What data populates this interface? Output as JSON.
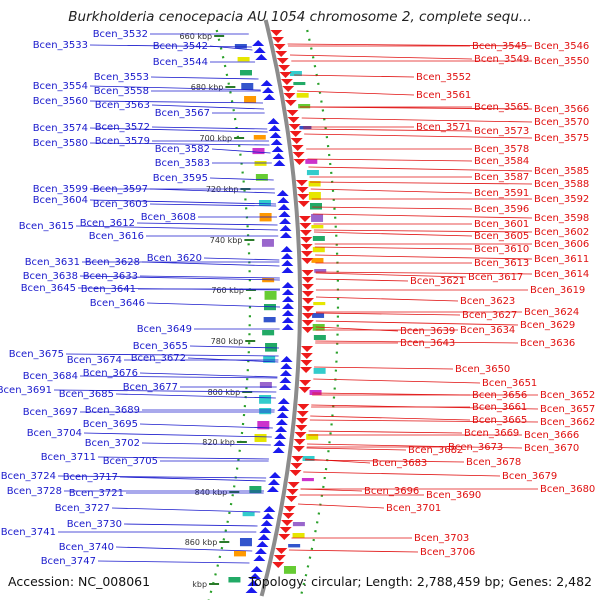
{
  "title": "Burkholderia cenocepacia AU 1054 chromosome 2, complete sequ...",
  "footer": {
    "accession": "Accession: NC_008061",
    "summary": "Topology: circular; Length: 2,788,459 bp; Genes: 2,482"
  },
  "colors": {
    "left_labels": "#1a1acc",
    "right_labels": "#e01010",
    "backbone": "#8c8c8c",
    "dots": "#2aa02a"
  },
  "scale_ticks": [
    "660 kbp",
    "680 kbp",
    "700 kbp",
    "720 kbp",
    "740 kbp",
    "760 kbp",
    "780 kbp",
    "800 kbp",
    "820 kbp",
    "840 kbp",
    "860 kbp",
    "kbp"
  ],
  "left_genes": [
    {
      "label": "Bcen_3532"
    },
    {
      "label": "Bcen_3533"
    },
    {
      "label": "Bcen_3542"
    },
    {
      "label": "Bcen_3544"
    },
    {
      "label": "Bcen_3553"
    },
    {
      "label": "Bcen_3554"
    },
    {
      "label": "Bcen_3558"
    },
    {
      "label": "Bcen_3560"
    },
    {
      "label": "Bcen_3563"
    },
    {
      "label": "Bcen_3567"
    },
    {
      "label": "Bcen_3572"
    },
    {
      "label": "Bcen_3574"
    },
    {
      "label": "Bcen_3579"
    },
    {
      "label": "Bcen_3580"
    },
    {
      "label": "Bcen_3582"
    },
    {
      "label": "Bcen_3583"
    },
    {
      "label": "Bcen_3595"
    },
    {
      "label": "Bcen_3597"
    },
    {
      "label": "Bcen_3599"
    },
    {
      "label": "Bcen_3603"
    },
    {
      "label": "Bcen_3604"
    },
    {
      "label": "Bcen_3608"
    },
    {
      "label": "Bcen_3612"
    },
    {
      "label": "Bcen_3615"
    },
    {
      "label": "Bcen_3616"
    },
    {
      "label": "Bcen_3620"
    },
    {
      "label": "Bcen_3628"
    },
    {
      "label": "Bcen_3631"
    },
    {
      "label": "Bcen_3633"
    },
    {
      "label": "Bcen_3638"
    },
    {
      "label": "Bcen_3641"
    },
    {
      "label": "Bcen_3645"
    },
    {
      "label": "Bcen_3646"
    },
    {
      "label": "Bcen_3649"
    },
    {
      "label": "Bcen_3655"
    },
    {
      "label": "Bcen_3672"
    },
    {
      "label": "Bcen_3674"
    },
    {
      "label": "Bcen_3675"
    },
    {
      "label": "Bcen_3676"
    },
    {
      "label": "Bcen_3677"
    },
    {
      "label": "Bcen_3684"
    },
    {
      "label": "Bcen_3685"
    },
    {
      "label": "Bcen_3689"
    },
    {
      "label": "Bcen_3691"
    },
    {
      "label": "Bcen_3695"
    },
    {
      "label": "Bcen_3697"
    },
    {
      "label": "Bcen_3702"
    },
    {
      "label": "Bcen_3704"
    },
    {
      "label": "Bcen_3705"
    },
    {
      "label": "Bcen_3711"
    },
    {
      "label": "Bcen_3717"
    },
    {
      "label": "Bcen_3721"
    },
    {
      "label": "Bcen_3724"
    },
    {
      "label": "Bcen_3727"
    },
    {
      "label": "Bcen_3728"
    },
    {
      "label": "Bcen_3730"
    },
    {
      "label": "Bcen_3740"
    },
    {
      "label": "Bcen_3741"
    },
    {
      "label": "Bcen_3747"
    }
  ],
  "right_genes": [
    {
      "label": "Bcen_3545"
    },
    {
      "label": "Bcen_3546"
    },
    {
      "label": "Bcen_3549"
    },
    {
      "label": "Bcen_3550"
    },
    {
      "label": "Bcen_3552"
    },
    {
      "label": "Bcen_3561"
    },
    {
      "label": "Bcen_3565"
    },
    {
      "label": "Bcen_3566"
    },
    {
      "label": "Bcen_3570"
    },
    {
      "label": "Bcen_3571"
    },
    {
      "label": "Bcen_3573"
    },
    {
      "label": "Bcen_3575"
    },
    {
      "label": "Bcen_3578"
    },
    {
      "label": "Bcen_3584"
    },
    {
      "label": "Bcen_3585"
    },
    {
      "label": "Bcen_3587"
    },
    {
      "label": "Bcen_3588"
    },
    {
      "label": "Bcen_3591"
    },
    {
      "label": "Bcen_3592"
    },
    {
      "label": "Bcen_3596"
    },
    {
      "label": "Bcen_3598"
    },
    {
      "label": "Bcen_3601"
    },
    {
      "label": "Bcen_3602"
    },
    {
      "label": "Bcen_3605"
    },
    {
      "label": "Bcen_3606"
    },
    {
      "label": "Bcen_3610"
    },
    {
      "label": "Bcen_3611"
    },
    {
      "label": "Bcen_3613"
    },
    {
      "label": "Bcen_3614"
    },
    {
      "label": "Bcen_3617"
    },
    {
      "label": "Bcen_3619"
    },
    {
      "label": "Bcen_3621"
    },
    {
      "label": "Bcen_3623"
    },
    {
      "label": "Bcen_3624"
    },
    {
      "label": "Bcen_3627"
    },
    {
      "label": "Bcen_3629"
    },
    {
      "label": "Bcen_3634"
    },
    {
      "label": "Bcen_3636"
    },
    {
      "label": "Bcen_3639"
    },
    {
      "label": "Bcen_3643"
    },
    {
      "label": "Bcen_3650"
    },
    {
      "label": "Bcen_3651"
    },
    {
      "label": "Bcen_3652"
    },
    {
      "label": "Bcen_3656"
    },
    {
      "label": "Bcen_3657"
    },
    {
      "label": "Bcen_3661"
    },
    {
      "label": "Bcen_3662"
    },
    {
      "label": "Bcen_3665"
    },
    {
      "label": "Bcen_3666"
    },
    {
      "label": "Bcen_3669"
    },
    {
      "label": "Bcen_3670"
    },
    {
      "label": "Bcen_3673"
    },
    {
      "label": "Bcen_3678"
    },
    {
      "label": "Bcen_3679"
    },
    {
      "label": "Bcen_3680"
    },
    {
      "label": "Bcen_3682"
    },
    {
      "label": "Bcen_3683"
    },
    {
      "label": "Bcen_3690"
    },
    {
      "label": "Bcen_3696"
    },
    {
      "label": "Bcen_3701"
    },
    {
      "label": "Bcen_3703"
    },
    {
      "label": "Bcen_3706"
    }
  ]
}
